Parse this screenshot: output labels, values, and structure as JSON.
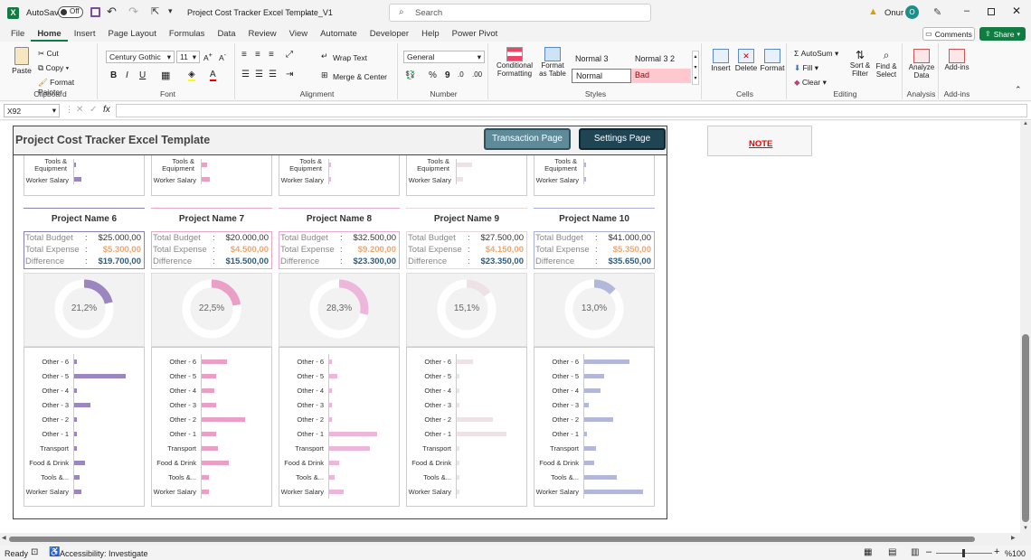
{
  "titlebar": {
    "autosave": "AutoSave",
    "autosave_state": "Off",
    "doc_title": "Project Cost Tracker Excel Template_V1",
    "search_placeholder": "Search",
    "user": "Onur",
    "user_initial": "O"
  },
  "tabs": [
    "File",
    "Home",
    "Insert",
    "Page Layout",
    "Formulas",
    "Data",
    "Review",
    "View",
    "Automate",
    "Developer",
    "Help",
    "Power Pivot"
  ],
  "ribbon": {
    "comments": "Comments",
    "share": "Share",
    "clipboard": {
      "paste": "Paste",
      "cut": "Cut",
      "copy": "Copy",
      "format_painter": "Format Painter",
      "label": "Clipboard"
    },
    "font": {
      "name": "Century Gothic",
      "size": "11",
      "label": "Font",
      "bold": "B",
      "italic": "I",
      "underline": "U"
    },
    "alignment": {
      "wrap": "Wrap Text",
      "merge": "Merge & Center",
      "label": "Alignment"
    },
    "number": {
      "format": "General",
      "label": "Number",
      "percent": "%",
      "comma": "9"
    },
    "styles": {
      "cond": "Conditional Formatting",
      "table": "Format as Table",
      "s1": "Normal 3",
      "s2": "Normal 3 2",
      "s3": "Normal",
      "s4": "Bad",
      "label": "Styles"
    },
    "cells": {
      "insert": "Insert",
      "delete": "Delete",
      "format": "Format",
      "label": "Cells"
    },
    "editing": {
      "autosum": "AutoSum",
      "fill": "Fill",
      "clear": "Clear",
      "sort": "Sort & Filter",
      "find": "Find & Select",
      "label": "Editing"
    },
    "analysis": {
      "analyze": "Analyze Data",
      "label": "Analysis"
    },
    "addins": {
      "addins": "Add-ins",
      "label": "Add-ins"
    }
  },
  "formula": {
    "cell_ref": "X92",
    "fx": "fx",
    "value": ""
  },
  "sheet": {
    "header_title": "Project Cost Tracker Excel Template",
    "transaction_btn": "Transaction  Page",
    "settings_btn": "Settings Page",
    "note": "NOTE",
    "top_labels": {
      "tools": "Tools &",
      "equipment": "Equipment",
      "salary": "Worker Salary"
    },
    "labels": {
      "budget": "Total Budget",
      "expense": "Total Expense",
      "diff": "Difference",
      "colon": ":"
    },
    "categories": [
      "Other - 6",
      "Other - 5",
      "Other - 4",
      "Other - 3",
      "Other - 2",
      "Other - 1",
      "Transport",
      "Food & Drink",
      "Tools &...",
      "Worker Salary"
    ],
    "projects": [
      {
        "name": "Project Name 6",
        "budget": "$25.000,00",
        "expense": "$5.300,00",
        "diff": "$19.700,00",
        "pct": "21,2%",
        "pct_value": 21.2,
        "color": "#9b86c0",
        "light": "#e6e0f0",
        "header_color": "#8a7fb0",
        "bars": [
          3,
          57,
          3,
          18,
          3,
          3,
          3,
          12,
          6,
          8
        ],
        "top_bars": [
          3,
          9
        ]
      },
      {
        "name": "Project Name 7",
        "budget": "$20.000,00",
        "expense": "$4.500,00",
        "diff": "$15.500,00",
        "pct": "22,5%",
        "pct_value": 22.5,
        "color": "#eaa0c6",
        "light": "#f7dbe9",
        "header_color": "#e8a6c5",
        "bars": [
          28,
          16,
          14,
          16,
          48,
          16,
          18,
          30,
          8,
          8
        ],
        "top_bars": [
          7,
          10
        ]
      },
      {
        "name": "Project Name 8",
        "budget": "$32.500,00",
        "expense": "$9.200,00",
        "diff": "$23.300,00",
        "pct": "28,3%",
        "pct_value": 28.3,
        "color": "#edb7dc",
        "light": "#f7e2f0",
        "header_color": "#e5a9d2",
        "bars": [
          3,
          9,
          3,
          3,
          3,
          53,
          45,
          11,
          6,
          16
        ],
        "top_bars": [
          3,
          3
        ]
      },
      {
        "name": "Project Name 9",
        "budget": "$27.500,00",
        "expense": "$4.150,00",
        "diff": "$23.350,00",
        "pct": "15,1%",
        "pct_value": 15.1,
        "color": "#ede3e7",
        "light": "#f4f0f2",
        "header_color": "#e2d8dc",
        "bars": [
          18,
          3,
          3,
          3,
          40,
          55,
          3,
          3,
          3,
          3
        ],
        "top_bars": [
          18,
          8
        ]
      },
      {
        "name": "Project Name 10",
        "budget": "$41.000,00",
        "expense": "$5.350,00",
        "diff": "$35.650,00",
        "pct": "13,0%",
        "pct_value": 13.0,
        "color": "#b2b8da",
        "light": "#e4e6f2",
        "header_color": "#a9b0d6",
        "bars": [
          50,
          22,
          18,
          5,
          32,
          3,
          13,
          11,
          36,
          65
        ],
        "top_bars": [
          3,
          3
        ]
      }
    ]
  },
  "status": {
    "ready": "Ready",
    "accessibility": "Accessibility: Investigate",
    "zoom": "%100"
  }
}
